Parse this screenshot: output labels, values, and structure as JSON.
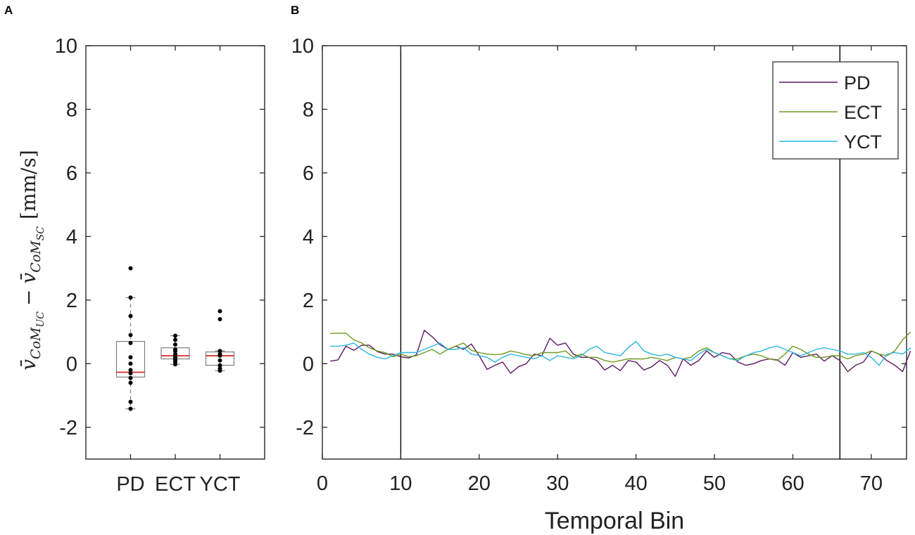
{
  "panels": {
    "a_label": "A",
    "b_label": "B"
  },
  "chart_data": [
    {
      "panel": "A",
      "type": "box",
      "categories": [
        "PD",
        "ECT",
        "YCT"
      ],
      "ylabel": {
        "prefix": "v̄",
        "sub1": "CoM",
        "subsub1": "UC",
        "minus": "−",
        "sub2": "CoM",
        "subsub2": "SC",
        "unit": "[mm/s]"
      },
      "ylim": [
        -3,
        10
      ],
      "yticks": [
        -2,
        0,
        2,
        4,
        6,
        8,
        10
      ],
      "box_color": "#808080",
      "median_color": "#d62728",
      "point_color": "#000000",
      "boxes": [
        {
          "name": "PD",
          "q1": -0.42,
          "median": -0.27,
          "q3": 0.7,
          "whisker_low": -1.42,
          "whisker_high": 2.08,
          "points": [
            3.0,
            2.08,
            1.5,
            0.9,
            0.65,
            0.2,
            0.0,
            -0.2,
            -0.3,
            -0.45,
            -0.6,
            -1.2,
            -1.42
          ]
        },
        {
          "name": "ECT",
          "q1": 0.15,
          "median": 0.25,
          "q3": 0.5,
          "whisker_low": -0.02,
          "whisker_high": 0.88,
          "points": [
            0.88,
            0.75,
            0.6,
            0.45,
            0.4,
            0.3,
            0.25,
            0.2,
            0.15,
            0.1,
            0.05,
            -0.02
          ]
        },
        {
          "name": "YCT",
          "q1": -0.05,
          "median": 0.25,
          "q3": 0.37,
          "whisker_low": -0.22,
          "whisker_high": 0.4,
          "points": [
            1.65,
            1.4,
            0.4,
            0.3,
            0.25,
            0.1,
            -0.05,
            -0.15,
            -0.22
          ]
        }
      ]
    },
    {
      "panel": "B",
      "type": "line",
      "xlabel": "Temporal Bin",
      "xlim": [
        0,
        74.5
      ],
      "ylim": [
        -3,
        10
      ],
      "xticks": [
        0,
        10,
        20,
        30,
        40,
        50,
        60,
        70
      ],
      "yticks": [
        -2,
        0,
        2,
        4,
        6,
        8,
        10
      ],
      "vlines": [
        10,
        66
      ],
      "legend_position": "top-right",
      "series": [
        {
          "name": "PD",
          "color": "#5b1a63",
          "values": [
            0.08,
            0.12,
            0.55,
            0.42,
            0.58,
            0.58,
            0.38,
            0.3,
            0.3,
            0.22,
            0.18,
            0.28,
            1.05,
            0.85,
            0.6,
            0.45,
            0.55,
            0.45,
            0.62,
            0.25,
            -0.18,
            -0.05,
            0.05,
            -0.3,
            -0.1,
            0.0,
            0.3,
            0.25,
            0.8,
            0.58,
            0.65,
            0.3,
            0.2,
            0.2,
            0.1,
            -0.2,
            -0.05,
            -0.22,
            0.1,
            0.05,
            -0.2,
            -0.1,
            0.1,
            -0.05,
            -0.4,
            0.15,
            -0.05,
            0.1,
            0.4,
            0.2,
            0.35,
            0.3,
            0.05,
            -0.05,
            0.0,
            0.1,
            0.15,
            0.12,
            -0.05,
            0.35,
            0.2,
            0.25,
            0.3,
            0.08,
            0.25,
            0.1,
            -0.25,
            -0.05,
            0.05,
            0.4,
            0.3,
            0.1,
            -0.05,
            -0.25,
            0.4
          ]
        },
        {
          "name": "ECT",
          "color": "#6e9a1e",
          "values": [
            0.95,
            0.96,
            0.96,
            0.75,
            0.65,
            0.5,
            0.4,
            0.35,
            0.22,
            0.3,
            0.22,
            0.25,
            0.35,
            0.45,
            0.3,
            0.45,
            0.55,
            0.65,
            0.42,
            0.35,
            0.3,
            0.28,
            0.3,
            0.4,
            0.35,
            0.28,
            0.25,
            0.35,
            0.35,
            0.35,
            0.4,
            0.2,
            0.3,
            0.2,
            0.2,
            0.1,
            0.05,
            0.1,
            0.15,
            0.15,
            0.15,
            0.2,
            0.15,
            0.1,
            0.2,
            0.15,
            0.2,
            0.4,
            0.5,
            0.35,
            0.25,
            0.15,
            0.15,
            0.25,
            0.3,
            0.25,
            0.15,
            0.1,
            0.3,
            0.55,
            0.45,
            0.3,
            0.2,
            0.2,
            0.25,
            0.25,
            0.15,
            0.25,
            0.3,
            0.4,
            0.3,
            0.25,
            0.4,
            0.75,
            1.0
          ]
        },
        {
          "name": "YCT",
          "color": "#2bb5e0",
          "values": [
            0.55,
            0.55,
            0.58,
            0.65,
            0.45,
            0.3,
            0.2,
            0.15,
            0.25,
            0.35,
            0.35,
            0.35,
            0.45,
            0.55,
            0.65,
            0.45,
            0.45,
            0.5,
            0.3,
            0.25,
            0.2,
            0.05,
            0.2,
            0.3,
            0.25,
            0.2,
            0.15,
            0.25,
            0.1,
            0.25,
            0.2,
            0.15,
            0.25,
            0.45,
            0.55,
            0.35,
            0.3,
            0.25,
            0.5,
            0.7,
            0.4,
            0.3,
            0.25,
            0.3,
            0.2,
            0.15,
            0.1,
            0.3,
            0.45,
            0.35,
            0.25,
            0.15,
            0.1,
            0.25,
            0.35,
            0.4,
            0.5,
            0.55,
            0.45,
            0.35,
            0.25,
            0.35,
            0.45,
            0.5,
            0.45,
            0.4,
            0.3,
            0.3,
            0.35,
            0.2,
            -0.05,
            0.3,
            0.35,
            0.3,
            0.5
          ]
        }
      ]
    }
  ]
}
